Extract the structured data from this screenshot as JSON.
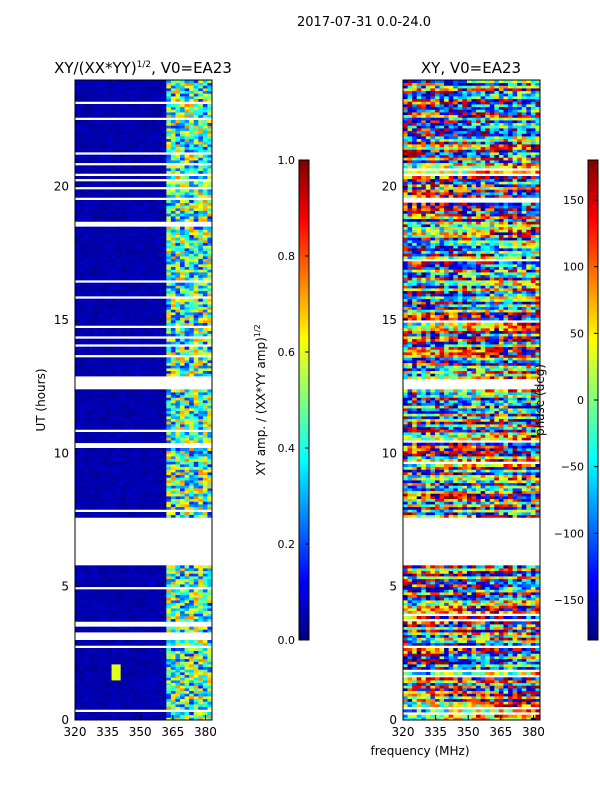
{
  "suptitle": "2017-07-31 0.0-24.0",
  "chart_data": [
    {
      "type": "heatmap",
      "title": "XY/(XX*YY)^(1/2), V0=EA23",
      "title_main": "XY/(XX*YY)",
      "title_exp": "1/2",
      "title_tail": ", V0=EA23",
      "xlabel": "",
      "ylabel": "UT (hours)",
      "xlim": [
        320,
        383
      ],
      "ylim": [
        0,
        24
      ],
      "xticks": [
        320,
        335,
        350,
        365,
        380
      ],
      "yticks": [
        0,
        5,
        10,
        15,
        20
      ],
      "colorbar": {
        "label": "XY amp. / (XX*YY amp)^(1/2)",
        "label_main": "XY amp. / (XX*YY amp)",
        "label_exp": "1/2",
        "range": [
          0.0,
          1.0
        ],
        "ticks": [
          "0.0",
          "0.2",
          "0.4",
          "0.6",
          "0.8",
          "1.0"
        ],
        "tick_values": [
          0.0,
          0.2,
          0.4,
          0.6,
          0.8,
          1.0
        ]
      },
      "data_gaps_hours": [
        [
          5.85,
          7.6
        ],
        [
          12.35,
          12.8
        ],
        [
          10.2,
          10.45
        ]
      ],
      "active_band_mhz": [
        362,
        383
      ]
    },
    {
      "type": "heatmap",
      "title": "XY, V0=EA23",
      "xlabel": "frequency (MHz)",
      "ylabel": "",
      "xlim": [
        320,
        383
      ],
      "ylim": [
        0,
        24
      ],
      "xticks": [
        320,
        335,
        350,
        365,
        380
      ],
      "yticks": [
        0,
        5,
        10,
        15,
        20
      ],
      "colorbar": {
        "label": "phase (deg)",
        "range": [
          -180,
          180
        ],
        "ticks": [
          "150",
          "100",
          "50",
          "0",
          "−50",
          "−100",
          "−150"
        ],
        "tick_values": [
          150,
          100,
          50,
          0,
          -50,
          -100,
          -150
        ]
      },
      "data_gaps_hours": [
        [
          5.85,
          7.6
        ],
        [
          12.35,
          12.8
        ]
      ]
    }
  ]
}
